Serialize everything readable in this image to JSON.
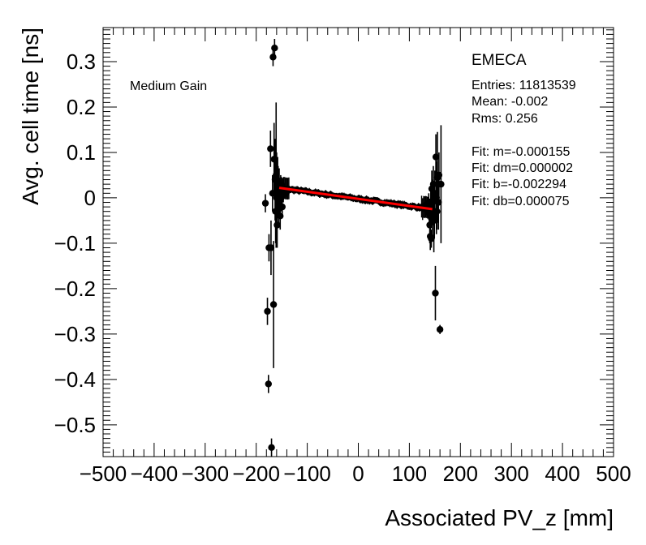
{
  "chart_data": {
    "type": "scatter",
    "xlabel": "Associated PV_z [mm]",
    "ylabel": "Avg. cell time [ns]",
    "xlim": [
      -500,
      500
    ],
    "ylim": [
      -0.57,
      0.375
    ],
    "x_ticks": [
      -500,
      -400,
      -300,
      -200,
      -100,
      0,
      100,
      200,
      300,
      400,
      500
    ],
    "x_tick_labels": [
      "−500",
      "−400",
      "−300",
      "−200",
      "−100",
      "0",
      "100",
      "200",
      "300",
      "400",
      "500"
    ],
    "y_ticks": [
      -0.5,
      -0.4,
      -0.3,
      -0.2,
      -0.1,
      0,
      0.1,
      0.2,
      0.3
    ],
    "y_tick_labels": [
      "−0.5",
      "−0.4",
      "−0.3",
      "−0.2",
      "−0.1",
      "0",
      "0.1",
      "0.2",
      "0.3"
    ],
    "grid": false,
    "annotation": "Medium Gain",
    "series": [
      {
        "marker_color": "#000000",
        "points": [
          {
            "x": -182,
            "y": -0.012,
            "err": 0.02
          },
          {
            "x": -178,
            "y": -0.25,
            "err": 0.03
          },
          {
            "x": -176,
            "y": -0.41,
            "err": 0.02
          },
          {
            "x": -175,
            "y": -0.11,
            "err": 0.03
          },
          {
            "x": -172,
            "y": 0.108,
            "err": 0.04
          },
          {
            "x": -171,
            "y": -0.11,
            "err": 0.06
          },
          {
            "x": -170,
            "y": -0.55,
            "err": 0.02
          },
          {
            "x": -168,
            "y": 0.01,
            "err": 0.04
          },
          {
            "x": -167,
            "y": 0.31,
            "err": 0.02
          },
          {
            "x": -166,
            "y": -0.235,
            "err": 0.14
          },
          {
            "x": -165,
            "y": 0.085,
            "err": 0.08
          },
          {
            "x": -164,
            "y": 0.33,
            "err": 0.02
          },
          {
            "x": -163,
            "y": 0.04,
            "err": 0.09
          },
          {
            "x": -162,
            "y": -0.03,
            "err": 0.07
          },
          {
            "x": -161,
            "y": 0.05,
            "err": 0.16
          },
          {
            "x": -160,
            "y": 0.0,
            "err": 0.1
          },
          {
            "x": -159,
            "y": -0.06,
            "err": 0.05
          },
          {
            "x": -158,
            "y": 0.03,
            "err": 0.06
          },
          {
            "x": -157,
            "y": 0.02,
            "err": 0.05
          },
          {
            "x": -156,
            "y": -0.02,
            "err": 0.04
          },
          {
            "x": -155,
            "y": 0.025,
            "err": 0.04
          },
          {
            "x": -154,
            "y": 0.0,
            "err": 0.04
          },
          {
            "x": -153,
            "y": -0.04,
            "err": 0.03
          },
          {
            "x": -152,
            "y": 0.02,
            "err": 0.03
          },
          {
            "x": -151,
            "y": 0.0,
            "err": 0.03
          },
          {
            "x": -150,
            "y": 0.015,
            "err": 0.02
          },
          {
            "x": -149,
            "y": -0.02,
            "err": 0.02
          },
          {
            "x": -148,
            "y": 0.02,
            "err": 0.02
          },
          {
            "x": -147,
            "y": 0.005,
            "err": 0.015
          },
          {
            "x": -146,
            "y": 0.018,
            "err": 0.015
          },
          {
            "x": -145,
            "y": 0.012,
            "err": 0.012
          },
          {
            "x": -144,
            "y": 0.02,
            "err": 0.01
          },
          {
            "x": -143,
            "y": 0.01,
            "err": 0.01
          },
          {
            "x": -142,
            "y": 0.016,
            "err": 0.008
          },
          {
            "x": -141,
            "y": 0.012,
            "err": 0.008
          },
          {
            "x": -140,
            "y": 0.018,
            "err": 0.006
          },
          {
            "x": 130,
            "y": -0.018,
            "err": 0.006
          },
          {
            "x": 132,
            "y": -0.02,
            "err": 0.008
          },
          {
            "x": 134,
            "y": -0.015,
            "err": 0.008
          },
          {
            "x": 135,
            "y": -0.025,
            "err": 0.01
          },
          {
            "x": 136,
            "y": -0.02,
            "err": 0.012
          },
          {
            "x": 137,
            "y": -0.03,
            "err": 0.015
          },
          {
            "x": 138,
            "y": -0.01,
            "err": 0.02
          },
          {
            "x": 139,
            "y": -0.035,
            "err": 0.02
          },
          {
            "x": 140,
            "y": -0.06,
            "err": 0.04
          },
          {
            "x": 141,
            "y": -0.085,
            "err": 0.03
          },
          {
            "x": 142,
            "y": -0.02,
            "err": 0.04
          },
          {
            "x": 143,
            "y": -0.09,
            "err": 0.02
          },
          {
            "x": 144,
            "y": 0.02,
            "err": 0.04
          },
          {
            "x": 145,
            "y": -0.03,
            "err": 0.06
          },
          {
            "x": 146,
            "y": -0.01,
            "err": 0.05
          },
          {
            "x": 147,
            "y": 0.03,
            "err": 0.04
          },
          {
            "x": 148,
            "y": -0.05,
            "err": 0.07
          },
          {
            "x": 149,
            "y": -0.04,
            "err": 0.05
          },
          {
            "x": 150,
            "y": 0.01,
            "err": 0.05
          },
          {
            "x": 151,
            "y": -0.21,
            "err": 0.06
          },
          {
            "x": 152,
            "y": 0.09,
            "err": 0.05
          },
          {
            "x": 153,
            "y": 0.0,
            "err": 0.08
          },
          {
            "x": 154,
            "y": -0.03,
            "err": 0.04
          },
          {
            "x": 155,
            "y": 0.045,
            "err": 0.1
          },
          {
            "x": 157,
            "y": -0.01,
            "err": 0.06
          },
          {
            "x": 158,
            "y": 0.05,
            "err": 0.05
          },
          {
            "x": 160,
            "y": -0.29,
            "err": 0.01
          },
          {
            "x": 162,
            "y": 0.03,
            "err": 0.13
          }
        ],
        "band": {
          "x_min": -160,
          "x_max": 148,
          "y_spread": 0.02,
          "noise": 0.006
        }
      }
    ],
    "fit_line": {
      "color": "#ff0000",
      "x_start": -155,
      "x_end": 145,
      "y_start": 0.022,
      "y_end": -0.025
    },
    "stats": {
      "name": "EMECA",
      "lines": [
        "Entries: 11813539",
        "Mean: -0.002",
        "Rms: 0.256",
        "",
        "Fit: m=-0.000155",
        "Fit: dm=0.000002",
        "Fit: b=-0.002294",
        "Fit: db=0.000075"
      ]
    }
  }
}
